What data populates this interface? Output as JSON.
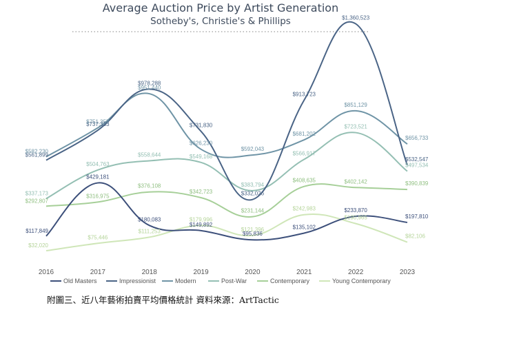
{
  "chart_data": {
    "type": "line",
    "title": "Average Auction Price by Artist Generation",
    "subtitle": "Sotheby's, Christie's & Phillips",
    "categories": [
      "2016",
      "2017",
      "2018",
      "2019",
      "2020",
      "2021",
      "2022",
      "2023"
    ],
    "xlabel": "",
    "ylabel": "",
    "ylim": [
      0,
      1500000
    ],
    "grid": false,
    "legend_position": "bottom",
    "series": [
      {
        "name": "Old Masters",
        "color": "#3c4f7a",
        "values": [
          117849,
          429181,
          180083,
          149892,
          95836,
          135102,
          233870,
          197810
        ],
        "labels": [
          "$117,849",
          "$429,181",
          "$180,083",
          "$149,892",
          "$95,836",
          "$135,102",
          "$233,870",
          "$197,810"
        ]
      },
      {
        "name": "Impressionist",
        "color": "#4a6486",
        "values": [
          561899,
          737333,
          978288,
          731830,
          332026,
          913723,
          1360523,
          532547
        ],
        "labels": [
          "$561,899",
          "$737,333",
          "$978,288",
          "$731,830",
          "$332,026",
          "$913,723",
          "$1,360,523",
          "$532,547"
        ]
      },
      {
        "name": "Modern",
        "color": "#6f94a6",
        "values": [
          582230,
          751357,
          951440,
          626230,
          592043,
          681202,
          851129,
          656733
        ],
        "labels": [
          "$582,230",
          "$751,357",
          "$951,440",
          "$626,230",
          "$592,043",
          "$681,202",
          "$851,129",
          "$656,733"
        ]
      },
      {
        "name": "Post-War",
        "color": "#94bfb3",
        "values": [
          337173,
          504763,
          558644,
          549168,
          383794,
          566917,
          723521,
          497534
        ],
        "labels": [
          "$337,173",
          "$504,763",
          "$558,644",
          "$549,168",
          "$383,794",
          "$566,917",
          "$723,521",
          "$497,534"
        ]
      },
      {
        "name": "Contemporary",
        "color": "#a6cf98",
        "values": [
          292807,
          316975,
          376108,
          342723,
          231144,
          408635,
          402142,
          390839
        ],
        "labels": [
          "$292,807",
          "$316,975",
          "$376,108",
          "$342,723",
          "$231,144",
          "$408,635",
          "$402,142",
          "$390,839"
        ]
      },
      {
        "name": "Young Contemporary",
        "color": "#cfe6b8",
        "values": [
          32020,
          75446,
          111253,
          179996,
          121396,
          242983,
          190965,
          82106
        ],
        "labels": [
          "$32,020",
          "$75,446",
          "$111,253",
          "$179,996",
          "$121,396",
          "$242,983",
          "$190,965",
          "$82,106"
        ]
      }
    ]
  },
  "caption": "附圖三、近八年藝術拍賣平均價格統計  資料來源：ArtTactic"
}
